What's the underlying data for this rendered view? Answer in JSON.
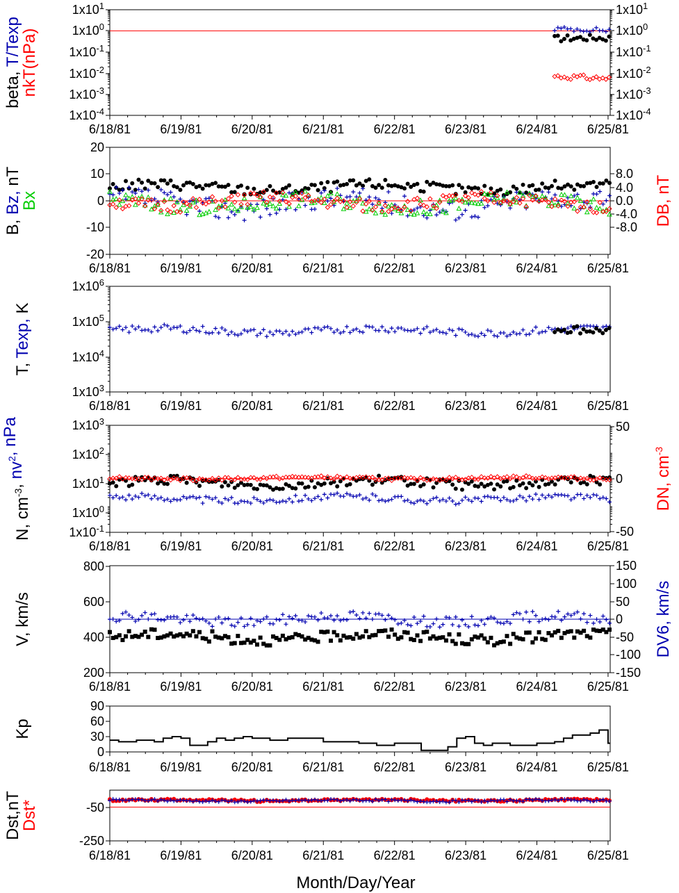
{
  "x_title": "Month/Day/Year",
  "dates": [
    "6/18/81",
    "6/19/81",
    "6/20/81",
    "6/21/81",
    "6/22/81",
    "6/23/81",
    "6/24/81",
    "6/25/81"
  ],
  "colors": {
    "black": "#000000",
    "red": "#ff0000",
    "blue": "#0000b0",
    "green": "#00cc00",
    "ref_line": "#ff0000"
  },
  "chart_data": [
    {
      "type": "scatter",
      "ylabels": [
        {
          "text": "beta, ",
          "color": "#000000",
          "line": 0
        },
        {
          "text": "T/Texp",
          "color": "#0000b0",
          "line": 0
        },
        {
          "text": "nkT(nPa)",
          "color": "#ff0000",
          "line": 1
        }
      ],
      "yscale": "log",
      "ylim": [
        0.0001,
        10
      ],
      "left_ticks": [
        "1x10^1",
        "1x10^0",
        "1x10^-1",
        "1x10^-2",
        "1x10^-3",
        "1x10^-4"
      ],
      "right_ticks": [
        "1x10^1",
        "1x10^0",
        "1x10^-1",
        "1x10^-2",
        "1x10^-3",
        "1x10^-4"
      ],
      "ref_line": 1,
      "series": [
        {
          "marker": "dot",
          "color": "#000000",
          "start": 6.25,
          "end": 7.03,
          "step": 0.045,
          "base": 0.38,
          "amp": 0.15,
          "log": true
        },
        {
          "marker": "plus",
          "color": "#0000b0",
          "start": 6.25,
          "end": 7.03,
          "step": 0.045,
          "base": 1.05,
          "amp": 0.3,
          "log": true
        },
        {
          "marker": "diamond",
          "color": "#ff0000",
          "start": 6.25,
          "end": 7.03,
          "step": 0.045,
          "base": 0.0065,
          "amp": 0.002,
          "log": true
        }
      ]
    },
    {
      "type": "scatter",
      "ylabels": [
        {
          "text": "B, ",
          "color": "#000000",
          "line": 0
        },
        {
          "text": "Bz, ",
          "color": "#0000b0",
          "line": 0
        },
        {
          "text": "nT",
          "color": "#000000",
          "line": 0
        },
        {
          "text": "Bx",
          "color": "#00cc00",
          "line": 1
        }
      ],
      "right_label": "DB, nT",
      "ylim": [
        -20,
        20
      ],
      "left_ticks": [
        "20",
        "10",
        "0",
        "-10",
        "-20"
      ],
      "right_ticks": [
        "8.0",
        "4.0",
        "0.0",
        "-4.0",
        "-8.0"
      ],
      "ref_line": 0,
      "series": [
        {
          "marker": "dot",
          "color": "#000000",
          "start": 0,
          "end": 7.03,
          "step": 0.045,
          "base": 5,
          "amp": 2
        },
        {
          "marker": "plus",
          "color": "#0000b0",
          "start": 0,
          "end": 7.03,
          "step": 0.045,
          "base": -1,
          "amp": 4
        },
        {
          "marker": "triangle",
          "color": "#00cc00",
          "start": 0,
          "end": 7.03,
          "step": 0.045,
          "base": -1,
          "amp": 3
        },
        {
          "marker": "diamond",
          "color": "#ff0000",
          "start": 0,
          "end": 7.03,
          "step": 0.045,
          "base": -0.5,
          "amp": 2.5
        }
      ]
    },
    {
      "type": "scatter",
      "ylabels": [
        {
          "text": "T, ",
          "color": "#000000",
          "line": 0
        },
        {
          "text": "Texp, ",
          "color": "#0000b0",
          "line": 0
        },
        {
          "text": "K",
          "color": "#000000",
          "line": 0
        }
      ],
      "yscale": "log",
      "ylim": [
        1000,
        1000000
      ],
      "left_ticks": [
        "1x10^6",
        "1x10^5",
        "1x10^4",
        "1x10^3"
      ],
      "series": [
        {
          "marker": "plus",
          "color": "#0000b0",
          "start": 0,
          "end": 7.03,
          "step": 0.045,
          "base": 55000,
          "amp": 15000,
          "log": true
        },
        {
          "marker": "dot",
          "color": "#000000",
          "start": 6.25,
          "end": 7.03,
          "step": 0.045,
          "base": 50000,
          "amp": 15000,
          "log": true
        }
      ]
    },
    {
      "type": "scatter",
      "ylabels": [
        {
          "text": "N, cm",
          "color": "#000000",
          "line": 0
        },
        {
          "text": "-3",
          "color": "#000000",
          "line": 0,
          "sup": true
        },
        {
          "text": ", ",
          "color": "#000000",
          "line": 0
        },
        {
          "text": "nv",
          "color": "#0000b0",
          "line": 0
        },
        {
          "text": "2",
          "color": "#0000b0",
          "line": 0,
          "sup": true
        },
        {
          "text": ", nPa",
          "color": "#0000b0",
          "line": 0
        }
      ],
      "right_label": "DN, cm",
      "right_label_sup": "-3",
      "yscale": "log",
      "ylim": [
        0.1,
        1000
      ],
      "left_ticks": [
        "1x10^3",
        "1x10^2",
        "1x10^1",
        "1x10^0",
        "1x10^-1"
      ],
      "right_ticks": [
        "50",
        "0",
        "-50"
      ],
      "ref_line": 10,
      "series": [
        {
          "marker": "dot",
          "color": "#000000",
          "start": 0,
          "end": 7.03,
          "step": 0.045,
          "base": 7,
          "amp": 3,
          "log": true
        },
        {
          "marker": "plus",
          "color": "#0000b0",
          "start": 0,
          "end": 7.03,
          "step": 0.045,
          "base": 1.8,
          "amp": 0.6,
          "log": true
        },
        {
          "marker": "diamond",
          "color": "#ff0000",
          "start": 0,
          "end": 7.03,
          "step": 0.045,
          "base": 10.5,
          "amp": 1.5,
          "log": true
        }
      ]
    },
    {
      "type": "scatter",
      "ylabels": [
        {
          "text": "V, km/s",
          "color": "#000000",
          "line": 0
        }
      ],
      "right_label": "DV6, km/s",
      "ylim": [
        200,
        800
      ],
      "left_ticks": [
        "800",
        "600",
        "400",
        "200"
      ],
      "right_ticks": [
        "150",
        "100",
        "50",
        "0",
        "-50",
        "-100",
        "-150"
      ],
      "ref_line": 500,
      "series": [
        {
          "marker": "square",
          "color": "#000000",
          "start": 0,
          "end": 7.03,
          "step": 0.045,
          "base": 400,
          "amp": 30
        },
        {
          "marker": "plus",
          "color": "#0000b0",
          "start": 0,
          "end": 7.03,
          "step": 0.045,
          "base": 500,
          "amp": 30
        }
      ]
    },
    {
      "type": "line",
      "ylabels": [
        {
          "text": "Kp",
          "color": "#000000",
          "line": 0
        }
      ],
      "ylim": [
        0,
        90
      ],
      "left_ticks": [
        "90",
        "60",
        "30",
        "0"
      ],
      "series": [
        {
          "name": "Kp",
          "color": "#000000",
          "x": [
            0,
            0.125,
            0.25,
            0.375,
            0.5,
            0.625,
            0.75,
            0.875,
            1,
            1.125,
            1.25,
            1.375,
            1.5,
            1.625,
            1.75,
            1.875,
            2,
            2.125,
            2.25,
            2.375,
            2.5,
            2.625,
            2.75,
            2.875,
            3,
            3.125,
            3.25,
            3.375,
            3.5,
            3.625,
            3.75,
            3.875,
            4,
            4.125,
            4.25,
            4.375,
            4.5,
            4.625,
            4.75,
            4.875,
            5,
            5.125,
            5.25,
            5.375,
            5.5,
            5.625,
            5.75,
            5.875,
            6,
            6.125,
            6.25,
            6.375,
            6.5,
            6.625,
            6.75,
            6.875,
            7
          ],
          "y": [
            23,
            20,
            20,
            23,
            23,
            20,
            27,
            30,
            27,
            13,
            13,
            20,
            27,
            23,
            27,
            30,
            27,
            27,
            23,
            23,
            27,
            27,
            27,
            27,
            20,
            20,
            20,
            20,
            17,
            17,
            13,
            13,
            17,
            17,
            17,
            3,
            3,
            3,
            10,
            27,
            30,
            17,
            13,
            17,
            17,
            13,
            13,
            13,
            17,
            17,
            20,
            27,
            33,
            33,
            37,
            43,
            17
          ]
        }
      ]
    },
    {
      "type": "scatter",
      "ylabels": [
        {
          "text": "Dst,nT",
          "color": "#000000",
          "line": 0
        },
        {
          "text": "Dst*",
          "color": "#ff0000",
          "line": 1
        }
      ],
      "ylim": [
        -250,
        50
      ],
      "left_ticks": [
        "-50",
        "-250"
      ],
      "ref_line": -50,
      "series": [
        {
          "marker": "dot",
          "color": "#ff0000",
          "start": 0,
          "end": 7.03,
          "step": 0.045,
          "base": -10,
          "amp": 6
        },
        {
          "marker": "plus",
          "color": "#0000b0",
          "start": 0,
          "end": 7.03,
          "step": 0.045,
          "base": -12,
          "amp": 6
        }
      ]
    }
  ]
}
